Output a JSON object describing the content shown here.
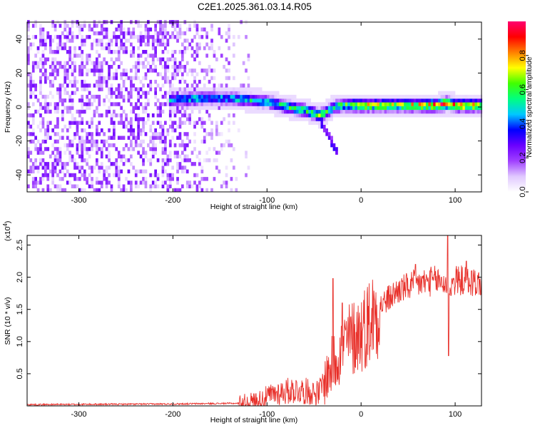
{
  "title": "C2E1.2025.361.03.14.R05",
  "chart_data": [
    {
      "type": "heatmap",
      "name": "spectrogram",
      "xlabel": "Height of straight line (km)",
      "ylabel": "Frequency (Hz)",
      "xlim": [
        -355,
        128
      ],
      "ylim": [
        -50,
        50
      ],
      "xticks": [
        -300,
        -200,
        -100,
        0,
        100
      ],
      "yticks": [
        -40,
        -20,
        0,
        20,
        40
      ],
      "colorbar": {
        "label": "Normalized spectral amplitude",
        "range": [
          0,
          1
        ],
        "ticks": [
          0.0,
          0.2,
          0.4,
          0.6,
          0.8
        ],
        "colormap": [
          "#ffffff",
          "#e0c8ff",
          "#a040ff",
          "#6a00ff",
          "#0000ff",
          "#00c8ff",
          "#00ff80",
          "#40ff00",
          "#ffff00",
          "#ff8000",
          "#ff0000",
          "#ff0070"
        ]
      },
      "ridge": {
        "x": [
          -205,
          -180,
          -160,
          -140,
          -120,
          -100,
          -80,
          -60,
          -45,
          -38,
          -30,
          -20,
          -10,
          0,
          20,
          40,
          60,
          80,
          90,
          100,
          128
        ],
        "freq": [
          3,
          4,
          4,
          4,
          3,
          2,
          -1,
          -3,
          -6,
          -4,
          -1,
          0,
          0,
          0,
          0,
          0,
          0,
          0,
          1,
          0,
          0
        ],
        "amplitude": [
          0.45,
          0.5,
          0.45,
          0.45,
          0.5,
          0.5,
          0.55,
          0.55,
          0.65,
          0.55,
          0.5,
          0.6,
          0.7,
          0.75,
          0.7,
          0.7,
          0.75,
          0.85,
          0.95,
          0.85,
          0.75
        ]
      },
      "noise_region": {
        "x_start": -355,
        "x_end": -140,
        "typical_amplitude": 0.1
      }
    },
    {
      "type": "line",
      "name": "snr",
      "xlabel": "Height of straight line (km)",
      "ylabel": "SNR (10 * v/v)",
      "scale_label": "(x10",
      "scale_exponent": "4",
      "xlim": [
        -355,
        128
      ],
      "ylim": [
        0,
        2.65
      ],
      "xticks": [
        -300,
        -200,
        -100,
        0,
        100
      ],
      "yticks": [
        0.5,
        1.0,
        1.5,
        2.0,
        2.5
      ],
      "ytick_labels": [
        "0.5",
        "1.0",
        "1.5",
        "2.0",
        "2.5"
      ],
      "color": "#e8302a",
      "envelope": {
        "x": [
          -355,
          -200,
          -130,
          -110,
          -90,
          -70,
          -55,
          -45,
          -35,
          -25,
          -15,
          0,
          20,
          40,
          60,
          80,
          90,
          95,
          100,
          110,
          128
        ],
        "y": [
          0.02,
          0.03,
          0.04,
          0.08,
          0.2,
          0.25,
          0.22,
          0.2,
          0.5,
          0.8,
          1.0,
          1.15,
          1.55,
          1.8,
          1.9,
          1.95,
          1.9,
          1.85,
          1.95,
          1.95,
          1.9
        ]
      },
      "spikes": [
        {
          "x": -30,
          "y": 1.98
        },
        {
          "x": -20,
          "y": 1.6
        },
        {
          "x": 58,
          "y": 2.2
        },
        {
          "x": 92,
          "y": 2.65
        },
        {
          "x": 93,
          "y": 0.78
        },
        {
          "x": 112,
          "y": 2.25
        }
      ]
    }
  ]
}
